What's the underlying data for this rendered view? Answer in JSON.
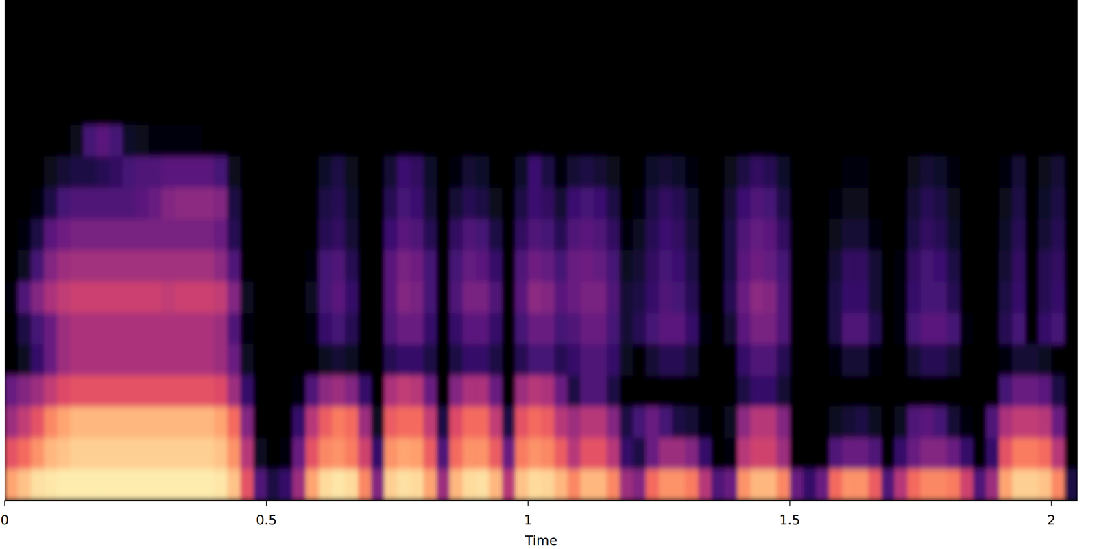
{
  "chart_data": {
    "type": "heatmap",
    "x_label": "Time",
    "xlim": [
      0,
      2.05
    ],
    "xticks": [
      0,
      0.5,
      1,
      1.5,
      2
    ],
    "tick_labels": "x",
    "zlim": [
      -80,
      0
    ],
    "cells": [
      [
        -15,
        -10,
        -5,
        -4,
        -3,
        -3,
        -3,
        -3,
        -3,
        -3,
        -3,
        -3,
        -3,
        -3,
        -3,
        -3,
        -4,
        -10,
        -30,
        -60,
        -70,
        -65,
        -45,
        -15,
        -6,
        -4,
        -6,
        -20,
        -50,
        -8,
        -5,
        -6,
        -15,
        -45,
        -12,
        -6,
        -5,
        -12,
        -40,
        -10,
        -6,
        -7,
        -12,
        -20,
        -12,
        -12,
        -20,
        -45,
        -50,
        -25,
        -18,
        -18,
        -22,
        -40,
        -60,
        -55,
        -18,
        -12,
        -12,
        -20,
        -55,
        -65,
        -55,
        -25,
        -18,
        -18,
        -28,
        -60,
        -40,
        -25,
        -20,
        -20,
        -22,
        -35,
        -60,
        -45,
        -15,
        -8,
        -8,
        -10,
        -20,
        -70
      ],
      [
        -30,
        -25,
        -18,
        -12,
        -10,
        -8,
        -8,
        -8,
        -8,
        -8,
        -8,
        -8,
        -8,
        -8,
        -8,
        -8,
        -10,
        -18,
        -40,
        -75,
        -80,
        -78,
        -55,
        -30,
        -20,
        -18,
        -22,
        -35,
        -65,
        -18,
        -15,
        -16,
        -28,
        -60,
        -25,
        -18,
        -18,
        -28,
        -55,
        -22,
        -18,
        -20,
        -28,
        -40,
        -30,
        -30,
        -40,
        -65,
        -70,
        -55,
        -45,
        -45,
        -50,
        -65,
        -80,
        -78,
        -40,
        -35,
        -35,
        -45,
        -80,
        -80,
        -80,
        -60,
        -55,
        -55,
        -60,
        -80,
        -65,
        -55,
        -50,
        -50,
        -55,
        -65,
        -80,
        -65,
        -30,
        -22,
        -22,
        -25,
        -40,
        -80
      ],
      [
        -45,
        -38,
        -30,
        -20,
        -15,
        -12,
        -12,
        -12,
        -12,
        -12,
        -12,
        -12,
        -12,
        -12,
        -12,
        -12,
        -15,
        -25,
        -50,
        -80,
        -80,
        -80,
        -65,
        -40,
        -28,
        -22,
        -25,
        -45,
        -75,
        -28,
        -25,
        -25,
        -38,
        -70,
        -32,
        -25,
        -25,
        -38,
        -70,
        -30,
        -25,
        -28,
        -40,
        -45,
        -40,
        -40,
        -50,
        -70,
        -62,
        -55,
        -62,
        -70,
        -72,
        -78,
        -80,
        -75,
        -48,
        -40,
        -40,
        -50,
        -80,
        -80,
        -80,
        -75,
        -72,
        -70,
        -75,
        -80,
        -75,
        -60,
        -58,
        -62,
        -72,
        -78,
        -80,
        -60,
        -42,
        -38,
        -38,
        -40,
        -55,
        -80
      ],
      [
        -55,
        -50,
        -45,
        -38,
        -32,
        -30,
        -30,
        -30,
        -30,
        -30,
        -30,
        -30,
        -30,
        -30,
        -30,
        -30,
        -32,
        -45,
        -65,
        -80,
        -80,
        -80,
        -78,
        -60,
        -48,
        -45,
        -50,
        -65,
        -80,
        -42,
        -38,
        -40,
        -55,
        -80,
        -50,
        -42,
        -42,
        -55,
        -80,
        -45,
        -40,
        -42,
        -55,
        -70,
        -60,
        -60,
        -70,
        -80,
        -80,
        -80,
        -80,
        -80,
        -80,
        -80,
        -80,
        -80,
        -70,
        -65,
        -65,
        -72,
        -80,
        -80,
        -80,
        -80,
        -80,
        -80,
        -80,
        -80,
        -80,
        -80,
        -80,
        -80,
        -80,
        -80,
        -80,
        -80,
        -62,
        -55,
        -55,
        -58,
        -70,
        -80
      ],
      [
        -80,
        -75,
        -65,
        -55,
        -45,
        -42,
        -42,
        -42,
        -42,
        -42,
        -42,
        -42,
        -42,
        -42,
        -42,
        -42,
        -45,
        -55,
        -75,
        -80,
        -80,
        -80,
        -80,
        -80,
        -75,
        -72,
        -75,
        -80,
        -80,
        -68,
        -65,
        -65,
        -70,
        -80,
        -70,
        -65,
        -65,
        -70,
        -80,
        -68,
        -62,
        -62,
        -68,
        -65,
        -60,
        -60,
        -65,
        -75,
        -80,
        -72,
        -68,
        -68,
        -72,
        -80,
        -80,
        -80,
        -65,
        -60,
        -60,
        -68,
        -80,
        -80,
        -80,
        -78,
        -72,
        -72,
        -78,
        -80,
        -80,
        -72,
        -68,
        -68,
        -72,
        -80,
        -80,
        -80,
        -78,
        -72,
        -72,
        -75,
        -80,
        -80
      ],
      [
        -80,
        -70,
        -62,
        -55,
        -45,
        -42,
        -42,
        -42,
        -42,
        -42,
        -42,
        -42,
        -42,
        -42,
        -42,
        -42,
        -45,
        -60,
        -78,
        -80,
        -80,
        -80,
        -80,
        -78,
        -65,
        -62,
        -68,
        -80,
        -80,
        -60,
        -55,
        -55,
        -65,
        -80,
        -65,
        -58,
        -58,
        -65,
        -80,
        -62,
        -55,
        -55,
        -62,
        -60,
        -55,
        -55,
        -62,
        -72,
        -68,
        -62,
        -58,
        -58,
        -65,
        -78,
        -80,
        -72,
        -58,
        -52,
        -52,
        -60,
        -80,
        -80,
        -80,
        -70,
        -60,
        -60,
        -68,
        -80,
        -78,
        -62,
        -58,
        -58,
        -62,
        -78,
        -80,
        -80,
        -68,
        -62,
        -80,
        -65,
        -62,
        -80
      ],
      [
        -78,
        -60,
        -50,
        -42,
        -38,
        -36,
        -36,
        -36,
        -36,
        -36,
        -36,
        -36,
        -38,
        -36,
        -36,
        -36,
        -38,
        -50,
        -75,
        -80,
        -80,
        -80,
        -80,
        -75,
        -62,
        -58,
        -65,
        -80,
        -80,
        -58,
        -50,
        -52,
        -62,
        -80,
        -60,
        -52,
        -52,
        -60,
        -80,
        -58,
        -48,
        -50,
        -58,
        -55,
        -52,
        -52,
        -60,
        -72,
        -70,
        -65,
        -60,
        -62,
        -68,
        -80,
        -80,
        -68,
        -55,
        -48,
        -50,
        -60,
        -80,
        -80,
        -80,
        -70,
        -65,
        -65,
        -72,
        -80,
        -78,
        -65,
        -62,
        -62,
        -68,
        -80,
        -80,
        -80,
        -70,
        -65,
        -80,
        -68,
        -65,
        -80
      ],
      [
        -80,
        -75,
        -62,
        -50,
        -45,
        -44,
        -44,
        -44,
        -44,
        -44,
        -44,
        -44,
        -44,
        -44,
        -44,
        -44,
        -48,
        -60,
        -80,
        -80,
        -80,
        -80,
        -80,
        -78,
        -62,
        -60,
        -68,
        -80,
        -80,
        -58,
        -52,
        -54,
        -62,
        -80,
        -62,
        -56,
        -58,
        -65,
        -80,
        -60,
        -54,
        -56,
        -62,
        -55,
        -54,
        -56,
        -62,
        -75,
        -72,
        -66,
        -62,
        -64,
        -70,
        -80,
        -80,
        -70,
        -58,
        -54,
        -56,
        -62,
        -80,
        -80,
        -80,
        -72,
        -66,
        -66,
        -72,
        -80,
        -78,
        -66,
        -62,
        -64,
        -70,
        -80,
        -80,
        -80,
        -72,
        -66,
        -80,
        -68,
        -66,
        -80
      ],
      [
        -80,
        -78,
        -70,
        -58,
        -54,
        -52,
        -52,
        -52,
        -52,
        -52,
        -52,
        -52,
        -52,
        -52,
        -52,
        -52,
        -55,
        -68,
        -80,
        -80,
        -80,
        -80,
        -80,
        -80,
        -68,
        -66,
        -72,
        -80,
        -80,
        -64,
        -58,
        -60,
        -68,
        -80,
        -66,
        -60,
        -62,
        -70,
        -80,
        -66,
        -60,
        -62,
        -68,
        -60,
        -58,
        -60,
        -66,
        -78,
        -75,
        -68,
        -64,
        -66,
        -72,
        -80,
        -80,
        -70,
        -60,
        -56,
        -58,
        -66,
        -80,
        -80,
        -80,
        -76,
        -72,
        -72,
        -78,
        -80,
        -80,
        -70,
        -66,
        -68,
        -74,
        -80,
        -80,
        -80,
        -74,
        -68,
        -80,
        -72,
        -68,
        -80
      ],
      [
        -80,
        -80,
        -78,
        -70,
        -62,
        -60,
        -60,
        -60,
        -60,
        -60,
        -58,
        -55,
        -50,
        -48,
        -48,
        -48,
        -50,
        -70,
        -80,
        -80,
        -80,
        -80,
        -80,
        -80,
        -70,
        -68,
        -74,
        -80,
        -80,
        -68,
        -62,
        -64,
        -72,
        -80,
        -72,
        -68,
        -70,
        -76,
        -80,
        -70,
        -64,
        -66,
        -72,
        -64,
        -62,
        -64,
        -70,
        -80,
        -78,
        -70,
        -66,
        -68,
        -74,
        -80,
        -80,
        -72,
        -64,
        -60,
        -62,
        -70,
        -80,
        -80,
        -80,
        -78,
        -76,
        -76,
        -80,
        -80,
        -80,
        -72,
        -68,
        -70,
        -76,
        -80,
        -80,
        -80,
        -76,
        -70,
        -80,
        -74,
        -70,
        -80
      ],
      [
        -80,
        -80,
        -80,
        -76,
        -72,
        -70,
        -70,
        -68,
        -66,
        -62,
        -60,
        -60,
        -58,
        -58,
        -58,
        -58,
        -62,
        -76,
        -80,
        -80,
        -80,
        -80,
        -80,
        -80,
        -74,
        -70,
        -76,
        -80,
        -80,
        -72,
        -64,
        -66,
        -74,
        -80,
        -78,
        -72,
        -74,
        -80,
        -80,
        -74,
        -64,
        -70,
        -78,
        -72,
        -70,
        -72,
        -76,
        -80,
        -80,
        -74,
        -72,
        -74,
        -78,
        -80,
        -80,
        -76,
        -70,
        -66,
        -68,
        -74,
        -80,
        -80,
        -80,
        -80,
        -78,
        -78,
        -80,
        -80,
        -80,
        -76,
        -72,
        -74,
        -78,
        -80,
        -80,
        -80,
        -78,
        -72,
        -80,
        -76,
        -72,
        -80
      ],
      [
        -80,
        -80,
        -80,
        -80,
        -80,
        -76,
        -62,
        -58,
        -62,
        -74,
        -76,
        -78,
        -78,
        -78,
        -78,
        -80,
        -80,
        -80,
        -80,
        -80,
        -80,
        -80,
        -80,
        -80,
        -80,
        -80,
        -80,
        -80,
        -80,
        -80,
        -80,
        -80,
        -80,
        -80,
        -80,
        -80,
        -80,
        -80,
        -80,
        -80,
        -80,
        -80,
        -80,
        -80,
        -80,
        -80,
        -80,
        -80,
        -80,
        -80,
        -80,
        -80,
        -80,
        -80,
        -80,
        -80,
        -80,
        -80,
        -80,
        -80,
        -80,
        -80,
        -80,
        -80,
        -80,
        -80,
        -80,
        -80,
        -80,
        -80,
        -80,
        -80,
        -80,
        -80,
        -80,
        -80,
        -80,
        -80,
        -80,
        -80,
        -80,
        -80
      ],
      [
        -80,
        -80,
        -80,
        -80,
        -80,
        -80,
        -80,
        -80,
        -80,
        -80,
        -80,
        -80,
        -80,
        -80,
        -80,
        -80,
        -80,
        -80,
        -80,
        -80,
        -80,
        -80,
        -80,
        -80,
        -80,
        -80,
        -80,
        -80,
        -80,
        -80,
        -80,
        -80,
        -80,
        -80,
        -80,
        -80,
        -80,
        -80,
        -80,
        -80,
        -80,
        -80,
        -80,
        -80,
        -80,
        -80,
        -80,
        -80,
        -80,
        -80,
        -80,
        -80,
        -80,
        -80,
        -80,
        -80,
        -80,
        -80,
        -80,
        -80,
        -80,
        -80,
        -80,
        -80,
        -80,
        -80,
        -80,
        -80,
        -80,
        -80,
        -80,
        -80,
        -80,
        -80,
        -80,
        -80,
        -80,
        -80,
        -80,
        -80,
        -80,
        -80
      ],
      [
        -80,
        -80,
        -80,
        -80,
        -80,
        -80,
        -80,
        -80,
        -80,
        -80,
        -80,
        -80,
        -80,
        -80,
        -80,
        -80,
        -80,
        -80,
        -80,
        -80,
        -80,
        -80,
        -80,
        -80,
        -80,
        -80,
        -80,
        -80,
        -80,
        -80,
        -80,
        -80,
        -80,
        -80,
        -80,
        -80,
        -80,
        -80,
        -80,
        -80,
        -80,
        -80,
        -80,
        -80,
        -80,
        -80,
        -80,
        -80,
        -80,
        -80,
        -80,
        -80,
        -80,
        -80,
        -80,
        -80,
        -80,
        -80,
        -80,
        -80,
        -80,
        -80,
        -80,
        -80,
        -80,
        -80,
        -80,
        -80,
        -80,
        -80,
        -80,
        -80,
        -80,
        -80,
        -80,
        -80,
        -80,
        -80,
        -80,
        -80,
        -80,
        -80
      ],
      [
        -80,
        -80,
        -80,
        -80,
        -80,
        -80,
        -80,
        -80,
        -80,
        -80,
        -80,
        -80,
        -80,
        -80,
        -80,
        -80,
        -80,
        -80,
        -80,
        -80,
        -80,
        -80,
        -80,
        -80,
        -80,
        -80,
        -80,
        -80,
        -80,
        -80,
        -80,
        -80,
        -80,
        -80,
        -80,
        -80,
        -80,
        -80,
        -80,
        -80,
        -80,
        -80,
        -80,
        -80,
        -80,
        -80,
        -80,
        -80,
        -80,
        -80,
        -80,
        -80,
        -80,
        -80,
        -80,
        -80,
        -80,
        -80,
        -80,
        -80,
        -80,
        -80,
        -80,
        -80,
        -80,
        -80,
        -80,
        -80,
        -80,
        -80,
        -80,
        -80,
        -80,
        -80,
        -80,
        -80,
        -80,
        -80,
        -80,
        -80,
        -80,
        -80
      ],
      [
        -80,
        -80,
        -80,
        -80,
        -80,
        -80,
        -80,
        -80,
        -80,
        -80,
        -80,
        -80,
        -80,
        -80,
        -80,
        -80,
        -80,
        -80,
        -80,
        -80,
        -80,
        -80,
        -80,
        -80,
        -80,
        -80,
        -80,
        -80,
        -80,
        -80,
        -80,
        -80,
        -80,
        -80,
        -80,
        -80,
        -80,
        -80,
        -80,
        -80,
        -80,
        -80,
        -80,
        -80,
        -80,
        -80,
        -80,
        -80,
        -80,
        -80,
        -80,
        -80,
        -80,
        -80,
        -80,
        -80,
        -80,
        -80,
        -80,
        -80,
        -80,
        -80,
        -80,
        -80,
        -80,
        -80,
        -80,
        -80,
        -80,
        -80,
        -80,
        -80,
        -80,
        -80,
        -80,
        -80,
        -80,
        -80,
        -80,
        -80,
        -80,
        -80
      ]
    ]
  }
}
